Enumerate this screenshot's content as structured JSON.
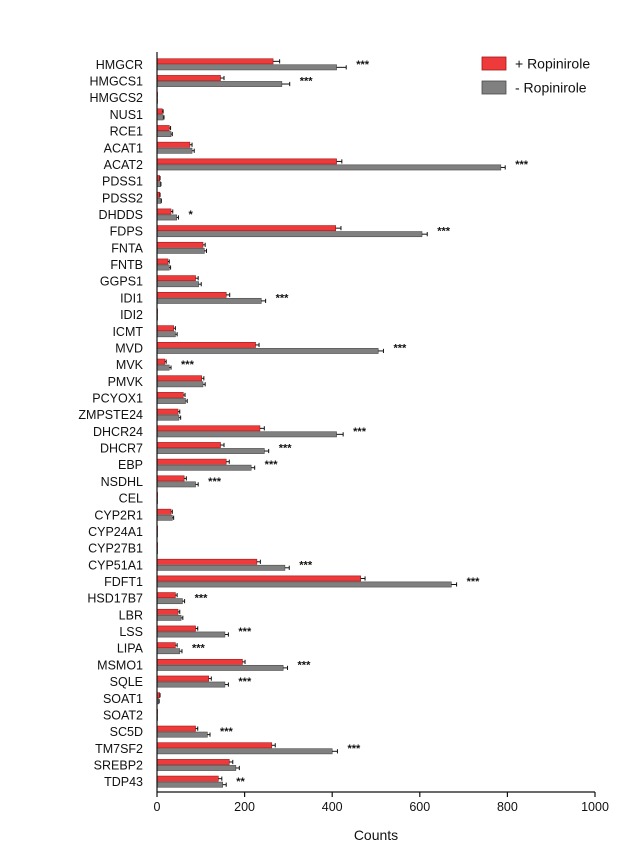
{
  "chart_data": {
    "type": "bar",
    "orientation": "horizontal",
    "xlabel": "Counts",
    "ylabel": "",
    "xlim": [
      0,
      1000
    ],
    "x_ticks": [
      0,
      200,
      400,
      600,
      800,
      1000
    ],
    "legend_position": "top-right",
    "categories": [
      "HMGCR",
      "HMGCS1",
      "HMGCS2",
      "NUS1",
      "RCE1",
      "ACAT1",
      "ACAT2",
      "PDSS1",
      "PDSS2",
      "DHDDS",
      "FDPS",
      "FNTA",
      "FNTB",
      "GGPS1",
      "IDI1",
      "IDI2",
      "ICMT",
      "MVD",
      "MVK",
      "PMVK",
      "PCYOX1",
      "ZMPSTE24",
      "DHCR24",
      "DHCR7",
      "EBP",
      "NSDHL",
      "CEL",
      "CYP2R1",
      "CYP24A1",
      "CYP27B1",
      "CYP51A1",
      "FDFT1",
      "HSD17B7",
      "LBR",
      "LSS",
      "LIPA",
      "MSMO1",
      "SQLE",
      "SOAT1",
      "SOAT2",
      "SC5D",
      "TM7SF2",
      "SREBP2",
      "TDP43"
    ],
    "series": [
      {
        "name": "+ Ropinirole",
        "color": "#ee3a3a",
        "values": [
          265,
          145,
          1,
          12,
          28,
          75,
          410,
          6,
          6,
          32,
          408,
          105,
          25,
          88,
          158,
          1,
          38,
          225,
          18,
          102,
          60,
          48,
          235,
          145,
          158,
          62,
          1,
          32,
          1,
          1,
          228,
          465,
          42,
          48,
          88,
          42,
          195,
          118,
          6,
          1,
          88,
          262,
          165,
          140
        ],
        "errors": [
          15,
          8,
          0,
          2,
          3,
          5,
          12,
          1,
          1,
          4,
          12,
          5,
          3,
          6,
          8,
          0,
          4,
          8,
          3,
          5,
          4,
          4,
          10,
          8,
          7,
          5,
          0,
          3,
          0,
          0,
          8,
          10,
          4,
          4,
          5,
          4,
          6,
          6,
          1,
          0,
          5,
          8,
          8,
          8
        ]
      },
      {
        "name": "- Ropinirole",
        "color": "#808080",
        "values": [
          410,
          285,
          1,
          14,
          32,
          80,
          785,
          8,
          9,
          45,
          605,
          108,
          28,
          95,
          238,
          1,
          42,
          505,
          28,
          105,
          65,
          50,
          410,
          245,
          215,
          88,
          1,
          35,
          1,
          1,
          292,
          672,
          58,
          55,
          155,
          52,
          288,
          155,
          4,
          1,
          115,
          400,
          180,
          150
        ],
        "errors": [
          22,
          18,
          0,
          2,
          3,
          5,
          10,
          1,
          1,
          4,
          12,
          5,
          3,
          6,
          10,
          0,
          4,
          12,
          4,
          5,
          4,
          4,
          15,
          10,
          8,
          6,
          0,
          3,
          0,
          0,
          10,
          12,
          5,
          4,
          8,
          5,
          10,
          8,
          1,
          0,
          6,
          12,
          8,
          8
        ]
      }
    ],
    "annotations": [
      "***",
      "***",
      "",
      "",
      "",
      "",
      "***",
      "",
      "",
      "*",
      "***",
      "",
      "",
      "",
      "***",
      "",
      "",
      "***",
      "***",
      "",
      "",
      "",
      "***",
      "***",
      "***",
      "***",
      "",
      "",
      "",
      "",
      "***",
      "***",
      "***",
      "",
      "***",
      "***",
      "***",
      "***",
      "",
      "",
      "***",
      "***",
      "",
      "**"
    ]
  }
}
